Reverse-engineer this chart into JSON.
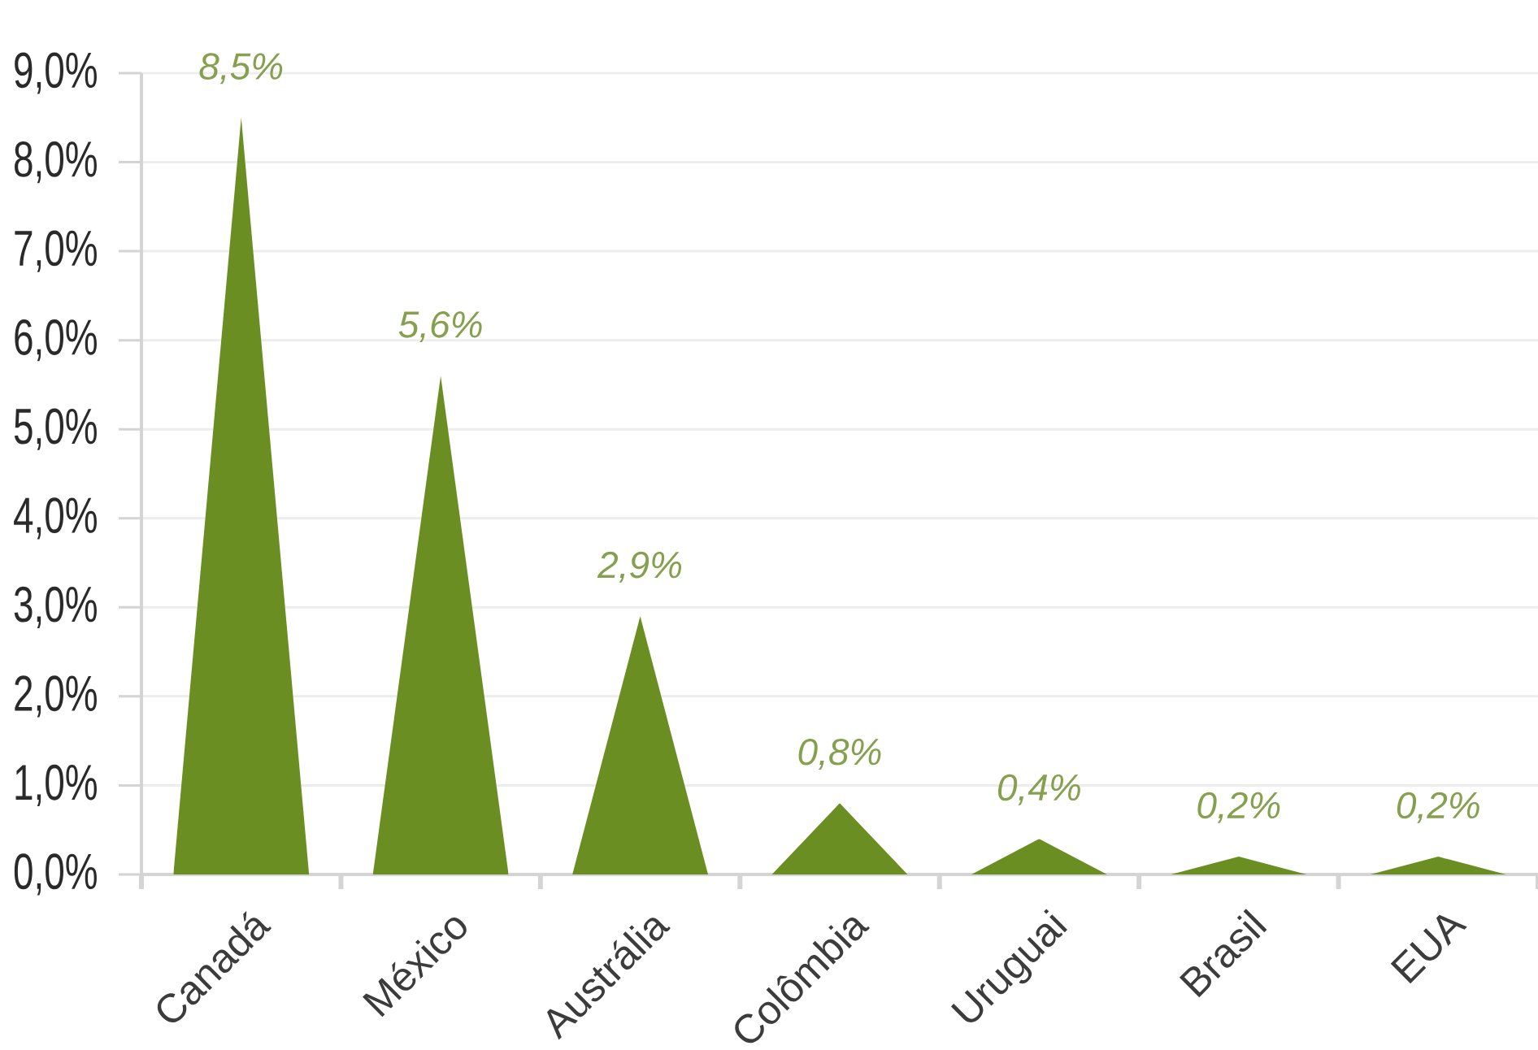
{
  "chart_data": {
    "type": "bar",
    "categories": [
      "Canadá",
      "México",
      "Austrália",
      "Colômbia",
      "Uruguai",
      "Brasil",
      "EUA"
    ],
    "values": [
      8.5,
      5.6,
      2.9,
      0.8,
      0.4,
      0.2,
      0.2
    ],
    "color": "#6b8e23",
    "value_labels": [
      "8,5%",
      "5,6%",
      "2,9%",
      "0,8%",
      "0,4%",
      "0,2%",
      "0,2%"
    ],
    "ylim": [
      0,
      9
    ],
    "yticks": [
      {
        "value": 0,
        "label": "0,0%"
      },
      {
        "value": 1,
        "label": "1,0%"
      },
      {
        "value": 2,
        "label": "2,0%"
      },
      {
        "value": 3,
        "label": "3,0%"
      },
      {
        "value": 4,
        "label": "4,0%"
      },
      {
        "value": 5,
        "label": "5,0%"
      },
      {
        "value": 6,
        "label": "6,0%"
      },
      {
        "value": 7,
        "label": "7,0%"
      },
      {
        "value": 8,
        "label": "8,0%"
      },
      {
        "value": 9,
        "label": "9,0%"
      }
    ],
    "grid": "y"
  }
}
